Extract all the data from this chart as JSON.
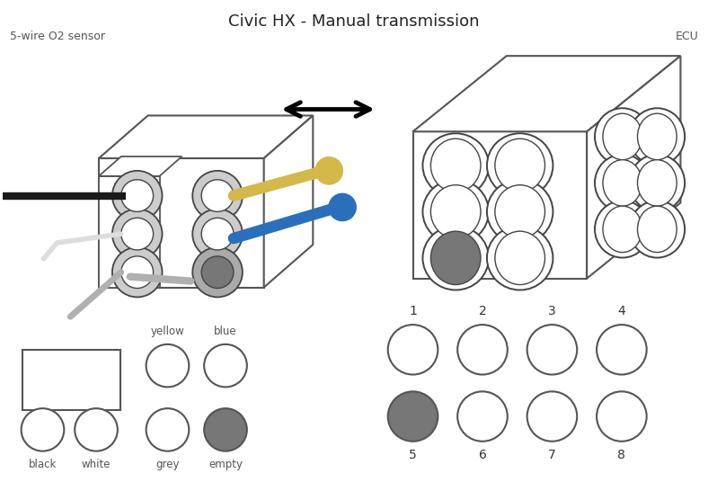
{
  "title": "Civic HX - Manual transmission",
  "title_fontsize": 13,
  "label_left": "5-wire O2 sensor",
  "label_right": "ECU",
  "label_fontsize": 9,
  "bg_color": "#ffffff",
  "outline_color": "#555555",
  "empty_color": "#777777",
  "wire_colors": {
    "black": "#1a1a1a",
    "white": "#f0f0f0",
    "yellow": "#d4b84a",
    "blue": "#2a6fbb",
    "grey": "#b0b0b0"
  }
}
